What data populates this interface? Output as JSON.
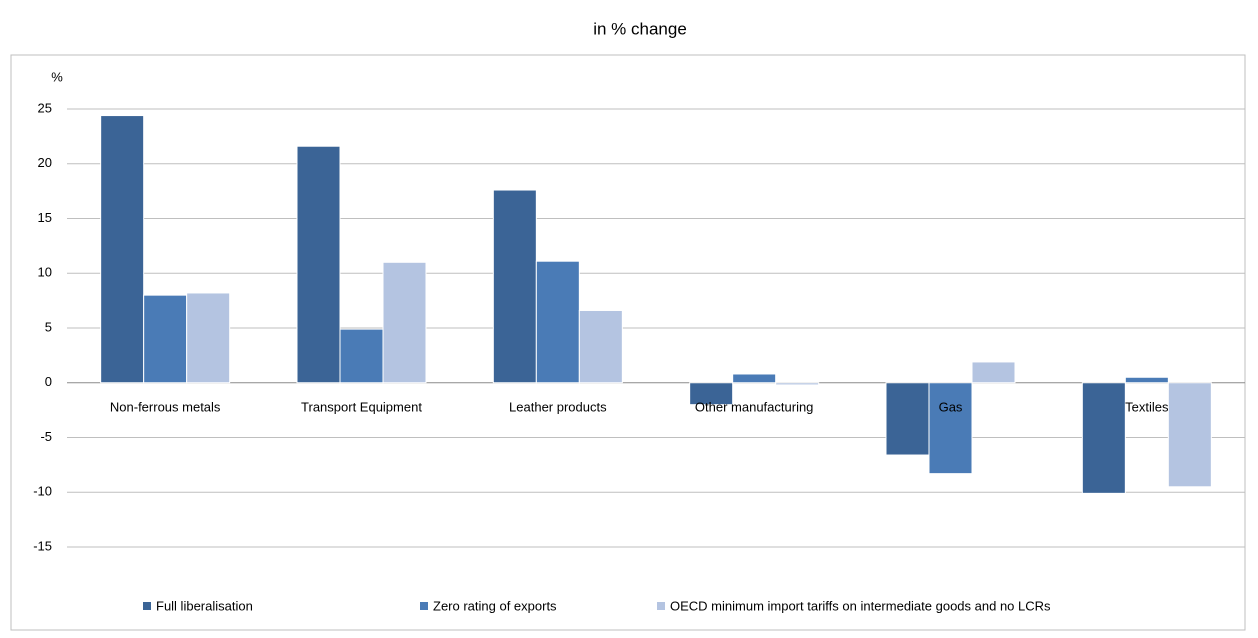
{
  "chart_data": {
    "type": "bar",
    "title": "in % change",
    "y_label": "%",
    "categories": [
      "Non-ferrous metals",
      "Transport Equipment",
      "Leather products",
      "Other manufacturing",
      "Gas",
      "Textiles"
    ],
    "series": [
      {
        "name": "Full liberalisation",
        "color": "#3b6496",
        "values": [
          24.4,
          21.6,
          17.6,
          -2.0,
          -6.6,
          -10.1
        ]
      },
      {
        "name": "Zero rating of exports",
        "color": "#4a7bb6",
        "values": [
          8.0,
          4.9,
          11.1,
          0.8,
          -8.3,
          0.5
        ]
      },
      {
        "name": "OECD minimum import tariffs on intermediate goods and no LCRs",
        "color": "#b4c4e1",
        "values": [
          8.2,
          11.0,
          6.6,
          -0.2,
          1.9,
          -9.5
        ]
      }
    ],
    "ylim": [
      -15,
      25
    ],
    "yticks": [
      -15,
      -10,
      -5,
      0,
      5,
      10,
      15,
      20,
      25
    ],
    "grid": true
  }
}
